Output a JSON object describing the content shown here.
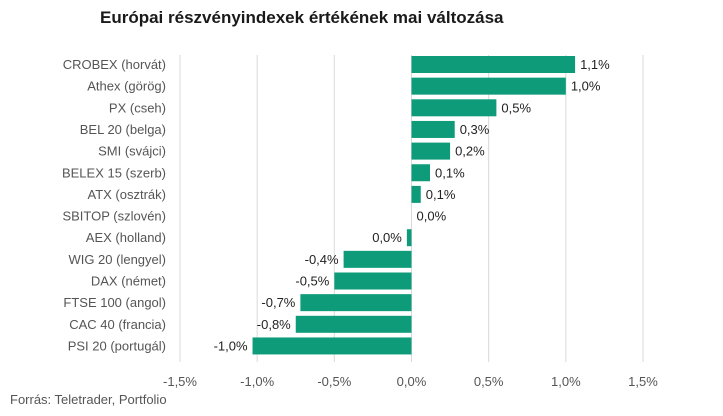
{
  "chart_data": {
    "type": "bar",
    "orientation": "horizontal",
    "title": "Európai részvényindexek értékének mai változása",
    "source": "Forrás: Teletrader, Portfolio",
    "categories": [
      "CROBEX (horvát)",
      "Athex (görög)",
      "PX (cseh)",
      "BEL 20 (belga)",
      "SMI (svájci)",
      "BELEX 15 (szerb)",
      "ATX (osztrák)",
      "SBITOP (szlovén)",
      "AEX (holland)",
      "WIG 20 (lengyel)",
      "DAX (német)",
      "FTSE 100 (angol)",
      "CAC 40 (francia)",
      "PSI 20 (portugál)"
    ],
    "values": [
      1.06,
      1.0,
      0.55,
      0.28,
      0.25,
      0.12,
      0.06,
      0.0,
      -0.03,
      -0.44,
      -0.5,
      -0.72,
      -0.75,
      -1.03
    ],
    "data_labels": [
      "1,1%",
      "1,0%",
      "0,5%",
      "0,3%",
      "0,2%",
      "0,1%",
      "0,1%",
      "0,0%",
      "0,0%",
      "-0,4%",
      "-0,5%",
      "-0,7%",
      "-0,8%",
      "-1,0%"
    ],
    "xlim": [
      -1.5,
      1.5
    ],
    "x_ticks": [
      -1.5,
      -1.0,
      -0.5,
      0.0,
      0.5,
      1.0,
      1.5
    ],
    "x_tick_labels": [
      "-1,5%",
      "-1,0%",
      "-0,5%",
      "0,0%",
      "0,5%",
      "1,0%",
      "1,5%"
    ],
    "grid": "vertical",
    "bar_color": "#0e9b7a",
    "grid_color": "#d9d9d9",
    "legend": "none"
  }
}
